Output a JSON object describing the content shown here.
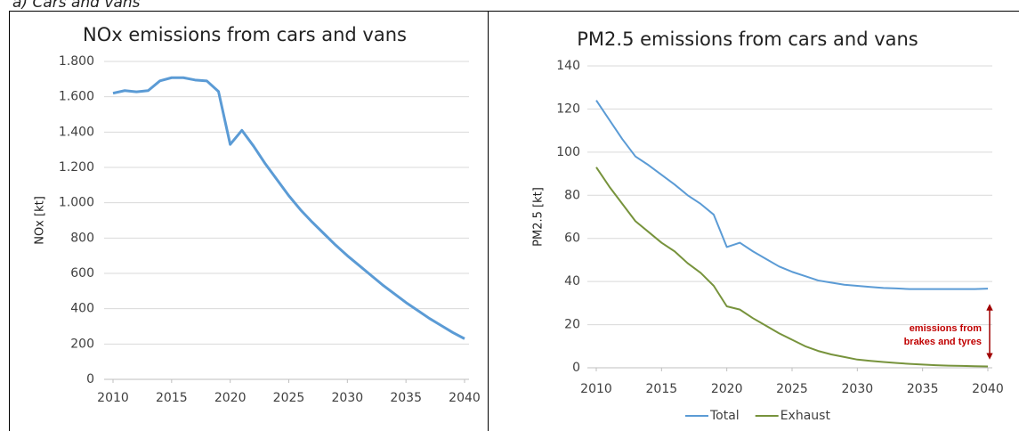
{
  "caption": "a) Cars and vans",
  "chart_data": [
    {
      "type": "line",
      "title": "NOx emissions from cars and vans",
      "ylabel": "NOx [kt]",
      "x": [
        2010,
        2011,
        2012,
        2013,
        2014,
        2015,
        2016,
        2017,
        2018,
        2019,
        2020,
        2021,
        2022,
        2023,
        2024,
        2025,
        2026,
        2027,
        2028,
        2029,
        2030,
        2031,
        2032,
        2033,
        2034,
        2035,
        2036,
        2037,
        2038,
        2039,
        2040
      ],
      "series": [
        {
          "color": "#5b9bd5",
          "values": [
            1620,
            1635,
            1628,
            1635,
            1690,
            1708,
            1708,
            1695,
            1690,
            1630,
            1330,
            1410,
            1320,
            1220,
            1130,
            1040,
            960,
            890,
            825,
            760,
            700,
            645,
            590,
            535,
            485,
            435,
            390,
            345,
            305,
            265,
            230
          ]
        }
      ],
      "xlim": [
        2010,
        2040
      ],
      "xticks": [
        2010,
        2015,
        2020,
        2025,
        2030,
        2035,
        2040
      ],
      "ylim": [
        0,
        1800
      ],
      "yticks": [
        0,
        200,
        400,
        600,
        800,
        {
          "value": 1000,
          "label": "1.000"
        },
        {
          "value": 1200,
          "label": "1.200"
        },
        {
          "value": 1400,
          "label": "1.400"
        },
        {
          "value": 1600,
          "label": "1.600"
        },
        {
          "value": 1800,
          "label": "1.800"
        }
      ],
      "grid": true
    },
    {
      "type": "line",
      "title": "PM2.5 emissions from cars and vans",
      "ylabel": "PM2.5 [kt]",
      "x": [
        2010,
        2011,
        2012,
        2013,
        2014,
        2015,
        2016,
        2017,
        2018,
        2019,
        2020,
        2021,
        2022,
        2023,
        2024,
        2025,
        2026,
        2027,
        2028,
        2029,
        2030,
        2031,
        2032,
        2033,
        2034,
        2035,
        2036,
        2037,
        2038,
        2039,
        2040
      ],
      "series": [
        {
          "name": "Total",
          "color": "#5b9bd5",
          "values": [
            124,
            115,
            106,
            98,
            94,
            89.5,
            85,
            80,
            76,
            71,
            56,
            58,
            54,
            50.5,
            47,
            44.5,
            42.5,
            40.5,
            39.5,
            38.5,
            38,
            37.5,
            37,
            36.8,
            36.5,
            36.5,
            36.5,
            36.5,
            36.5,
            36.5,
            36.7
          ]
        },
        {
          "name": "Exhaust",
          "color": "#77933c",
          "values": [
            93,
            84,
            76,
            68,
            63,
            58,
            54,
            48.5,
            44,
            38,
            28.5,
            27,
            23,
            19.5,
            16,
            13,
            10,
            7.8,
            6.2,
            5,
            3.8,
            3.2,
            2.7,
            2.2,
            1.8,
            1.5,
            1.2,
            1,
            0.9,
            0.7,
            0.6
          ]
        }
      ],
      "xlim": [
        2010,
        2040
      ],
      "xticks": [
        2010,
        2015,
        2020,
        2025,
        2030,
        2035,
        2040
      ],
      "ylim": [
        0,
        140
      ],
      "yticks": [
        0,
        20,
        40,
        60,
        80,
        100,
        120,
        140
      ],
      "grid": true,
      "legend": "bottom",
      "annotation": [
        "emissions from",
        "brakes and tyres"
      ]
    }
  ]
}
